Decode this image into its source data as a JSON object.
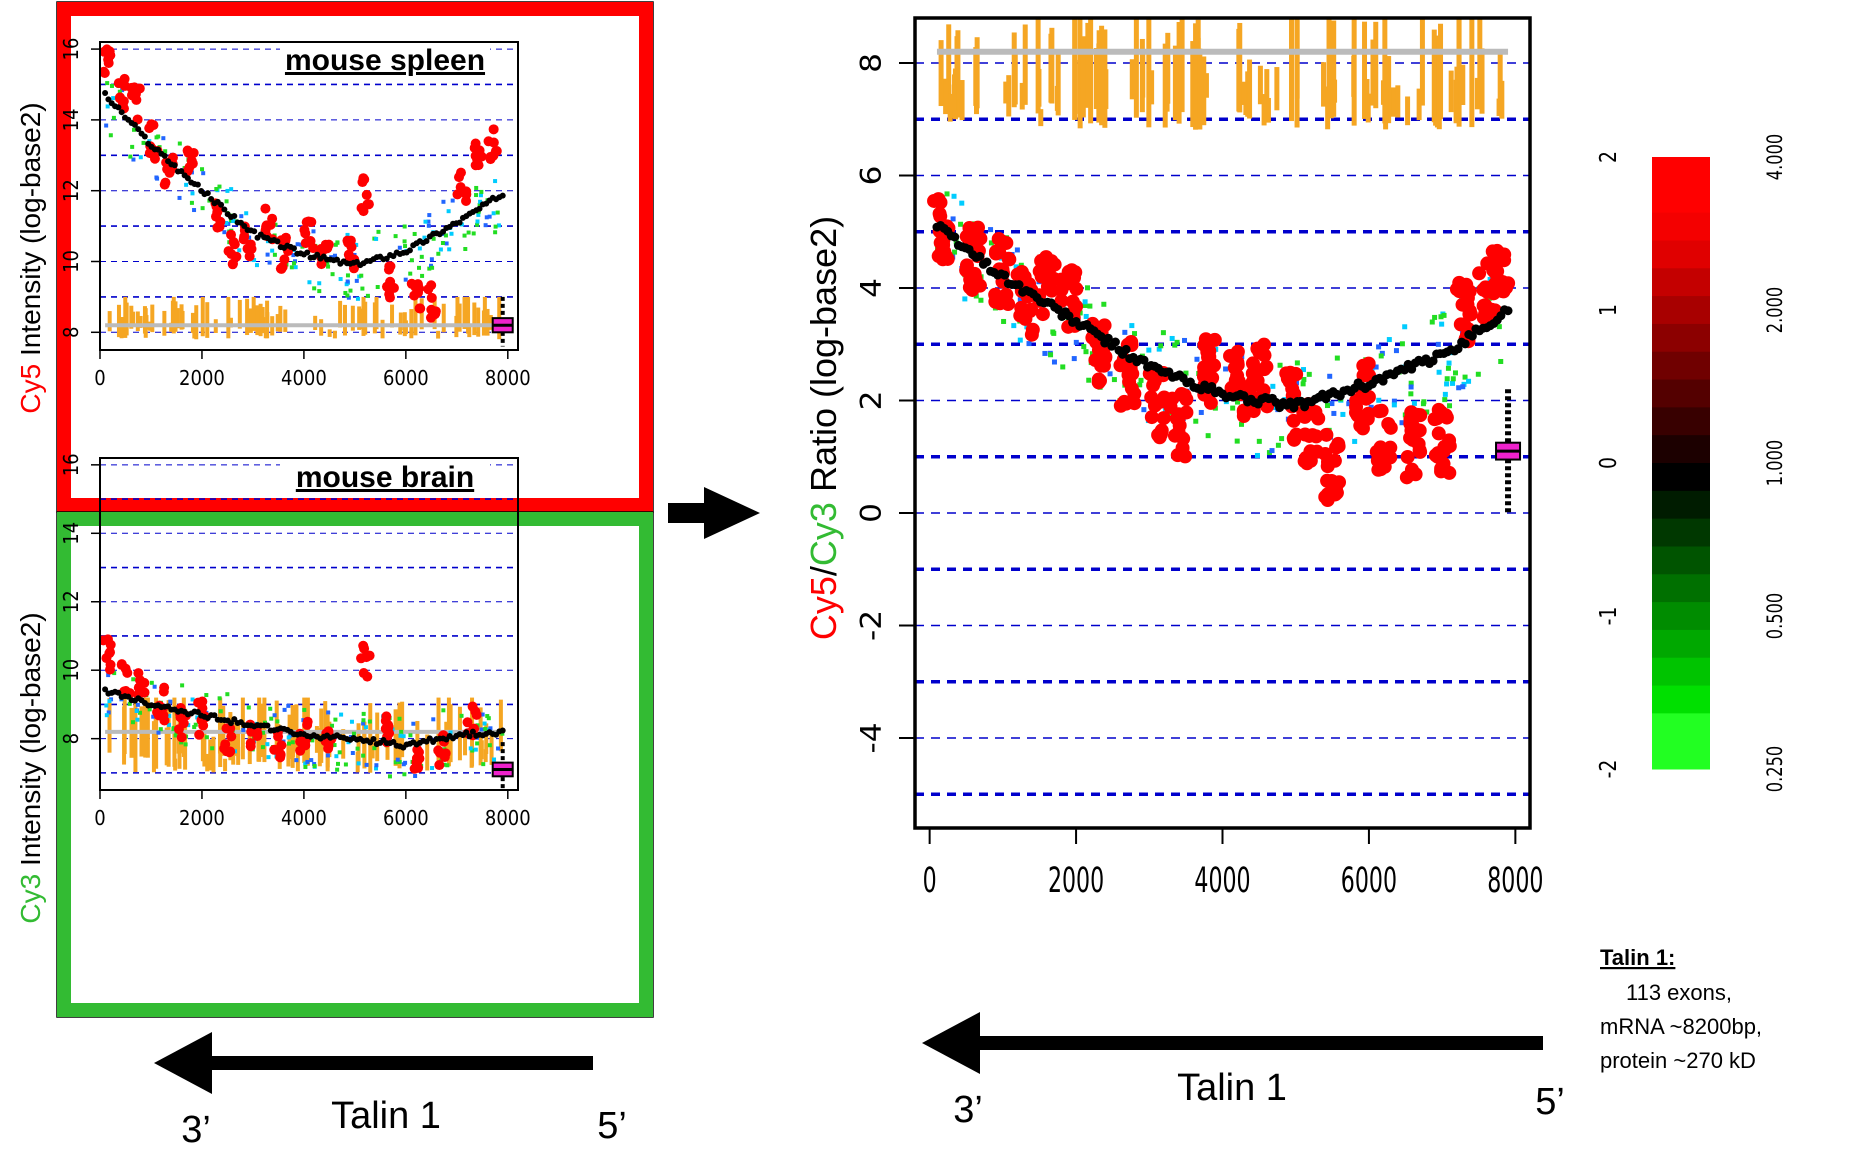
{
  "chart_data": [
    {
      "id": "spleen",
      "type": "scatter",
      "title": "mouse spleen",
      "ylabel_colored": "Cy5",
      "ylabel_color": "#ff0000",
      "ylabel_rest": " Intensity (log-base2)",
      "frame_color": "#ff0000",
      "xlim": [
        0,
        8200
      ],
      "ylim": [
        7.5,
        16.2
      ],
      "x_ticks": [
        "0",
        "2000",
        "4000",
        "6000",
        "8000"
      ],
      "x_tick_values": [
        0,
        2000,
        4000,
        6000,
        8000
      ],
      "y_ticks": [
        "8",
        "10",
        "12",
        "14",
        "16"
      ],
      "y_tick_values": [
        8,
        10,
        12,
        14,
        16
      ],
      "gridlines": [
        8,
        9,
        10,
        11,
        12,
        13,
        14,
        15,
        16
      ],
      "trend": {
        "x": [
          100,
          1000,
          2000,
          3000,
          4000,
          5000,
          6000,
          7000,
          7900
        ],
        "y": [
          14.7,
          13.3,
          12.0,
          10.8,
          10.2,
          9.9,
          10.3,
          11.1,
          11.9
        ]
      },
      "points_red": {
        "x": [
          150,
          400,
          700,
          1050,
          1350,
          1750,
          2300,
          2600,
          2900,
          3300,
          3600,
          4100,
          4400,
          4900,
          5200,
          5700,
          6200,
          6500,
          7100,
          7400,
          7700
        ],
        "y": [
          15.6,
          14.8,
          14.5,
          13.4,
          12.5,
          12.8,
          11.2,
          10.4,
          10.6,
          11.1,
          10.2,
          10.8,
          10.4,
          10.3,
          11.9,
          9.4,
          9.0,
          8.9,
          12.2,
          13.1,
          13.3
        ]
      },
      "boxplot": {
        "x": 7900,
        "median": 8.2,
        "q1": 8.0,
        "q3": 8.4
      },
      "baseline": {
        "y": 8.2,
        "x": [
          100,
          7900
        ]
      },
      "bar_band": [
        7.8,
        9.0
      ]
    },
    {
      "id": "brain",
      "type": "scatter",
      "title": "mouse brain",
      "ylabel_colored": "Cy3",
      "ylabel_color": "#33bb33",
      "ylabel_rest": " Intensity (log-base2)",
      "frame_color": "#33bb33",
      "xlim": [
        0,
        8200
      ],
      "ylim": [
        6.5,
        16.2
      ],
      "x_ticks": [
        "0",
        "2000",
        "4000",
        "6000",
        "8000"
      ],
      "x_tick_values": [
        0,
        2000,
        4000,
        6000,
        8000
      ],
      "y_ticks": [
        "8",
        "10",
        "12",
        "14",
        "16"
      ],
      "y_tick_values": [
        8,
        10,
        12,
        14,
        16
      ],
      "gridlines": [
        7,
        8,
        9,
        10,
        11,
        12,
        13,
        14,
        15,
        16
      ],
      "trend": {
        "x": [
          100,
          1000,
          2000,
          3000,
          4000,
          5000,
          6000,
          7000,
          7900
        ],
        "y": [
          9.4,
          9.0,
          8.7,
          8.4,
          8.1,
          8.0,
          7.8,
          8.1,
          8.2
        ]
      },
      "points_red": {
        "x": [
          150,
          500,
          800,
          1200,
          1600,
          2000,
          2500,
          3000,
          3500,
          4000,
          4500,
          5200,
          5600,
          6200,
          6700,
          7300
        ],
        "y": [
          10.5,
          9.8,
          9.7,
          9.0,
          8.4,
          8.6,
          8.0,
          8.2,
          7.9,
          8.1,
          7.8,
          10.3,
          8.3,
          7.4,
          7.6,
          8.5
        ]
      },
      "boxplot": {
        "x": 7900,
        "median": 7.1,
        "q1": 6.9,
        "q3": 7.3
      },
      "baseline": {
        "y": 8.2,
        "x": [
          100,
          7900
        ]
      },
      "bar_band": [
        7.0,
        9.2
      ]
    },
    {
      "id": "ratio",
      "type": "scatter",
      "ylabel_parts": [
        {
          "text": "Cy5",
          "color": "#ff0000"
        },
        {
          "text": "/",
          "color": "#000000"
        },
        {
          "text": "Cy3",
          "color": "#33bb33"
        },
        {
          "text": " Ratio (log-base2)",
          "color": "#000000"
        }
      ],
      "xlim": [
        -200,
        8200
      ],
      "ylim": [
        -5.6,
        8.8
      ],
      "x_ticks": [
        "0",
        "2000",
        "4000",
        "6000",
        "8000"
      ],
      "x_tick_values": [
        0,
        2000,
        4000,
        6000,
        8000
      ],
      "y_ticks": [
        "-4",
        "-2",
        "0",
        "2",
        "4",
        "6",
        "8"
      ],
      "y_tick_values": [
        -4,
        -2,
        0,
        2,
        4,
        6,
        8
      ],
      "gridlines": [
        -5,
        -4,
        -3,
        -2,
        -1,
        0,
        1,
        2,
        3,
        4,
        5,
        6,
        7,
        8
      ],
      "trend": {
        "x": [
          100,
          1000,
          2000,
          3000,
          4000,
          5000,
          6000,
          7000,
          7900
        ],
        "y": [
          5.1,
          4.2,
          3.4,
          2.6,
          2.1,
          1.9,
          2.3,
          2.8,
          3.6
        ]
      },
      "points_red": {
        "x": [
          150,
          600,
          1000,
          1300,
          1600,
          1900,
          2300,
          2700,
          3100,
          3400,
          3800,
          4200,
          4500,
          4900,
          5200,
          5500,
          5900,
          6200,
          6600,
          7000,
          7300,
          7600,
          7800
        ],
        "y": [
          5.0,
          4.5,
          4.3,
          3.7,
          4.1,
          3.9,
          2.9,
          2.5,
          1.9,
          1.6,
          2.5,
          2.3,
          2.4,
          1.9,
          1.4,
          0.8,
          2.1,
          1.3,
          1.2,
          1.3,
          3.5,
          3.9,
          4.2
        ]
      },
      "boxplot": {
        "x": 7900,
        "median": 1.1,
        "q1": 0.95,
        "q3": 1.25
      },
      "baseline": {
        "y": 8.2,
        "x": [
          100,
          7900
        ]
      },
      "bar_band": [
        6.8,
        8.8
      ]
    }
  ],
  "colorbar": {
    "left_labels": [
      "2",
      "1",
      "0",
      "-1",
      "-2"
    ],
    "left_values": [
      2,
      1,
      0,
      -1,
      -2
    ],
    "right_labels": [
      "4.000",
      "2.000",
      "1.000",
      "0.500",
      "0.250"
    ],
    "colors_top_to_bottom": [
      "#ff0000",
      "#ff0000",
      "#f40000",
      "#e00000",
      "#c40000",
      "#a80000",
      "#8c0000",
      "#700000",
      "#540000",
      "#380000",
      "#1c0000",
      "#000000",
      "#001c00",
      "#003800",
      "#005400",
      "#007000",
      "#008c00",
      "#00a800",
      "#00c400",
      "#00e000",
      "#22ff22",
      "#22ff22"
    ]
  },
  "gene_left": {
    "name": "Talin 1",
    "end3": "3’",
    "end5": "5’"
  },
  "gene_right": {
    "name": "Talin 1",
    "end3": "3’",
    "end5": "5’"
  },
  "note": {
    "heading": "Talin 1:",
    "lines": [
      "113 exons,",
      "mRNA ~8200bp,",
      "protein ~270 kD"
    ]
  },
  "colors": {
    "red_point": "#ff0000",
    "green_point": "#22dd22",
    "blue_point": "#2266ff",
    "cyan_point": "#00ccff",
    "trend": "#000000",
    "bars": "#f5a623",
    "grid": "#0000cc",
    "baseline": "#bbbbbb",
    "box": "#ee22cc"
  }
}
